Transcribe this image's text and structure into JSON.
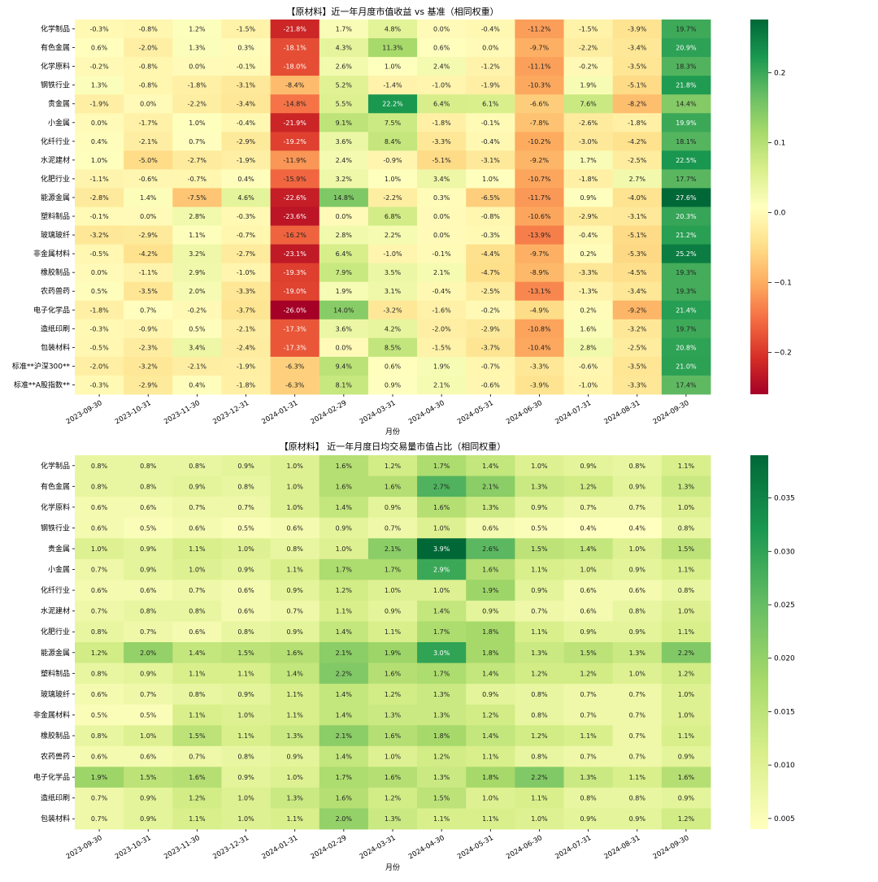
{
  "chart_data": [
    {
      "type": "heatmap",
      "title": "【原材料】近一年月度市值收益 vs 基准（相同权重）",
      "xlabel": "月份",
      "ylabel": "",
      "x": [
        "2023-09-30",
        "2023-10-31",
        "2023-11-30",
        "2023-12-31",
        "2024-01-31",
        "2024-02-29",
        "2024-03-31",
        "2024-04-30",
        "2024-05-31",
        "2024-06-30",
        "2024-07-31",
        "2024-08-31",
        "2024-09-30"
      ],
      "y": [
        "化学制品",
        "有色金属",
        "化学原料",
        "钢铁行业",
        "贵金属",
        "小金属",
        "化纤行业",
        "水泥建材",
        "化肥行业",
        "能源金属",
        "塑料制品",
        "玻璃玻纤",
        "非金属材料",
        "橡胶制品",
        "农药兽药",
        "电子化学品",
        "造纸印刷",
        "包装材料",
        "标准**沪深300**",
        "标准**A股指数**"
      ],
      "values": [
        [
          -0.3,
          -0.8,
          1.2,
          -1.5,
          -21.8,
          1.7,
          4.8,
          0.0,
          -0.4,
          -11.2,
          -1.5,
          -3.9,
          19.7
        ],
        [
          0.6,
          -2.0,
          1.3,
          0.3,
          -18.1,
          4.3,
          11.3,
          0.6,
          0.0,
          -9.7,
          -2.2,
          -3.4,
          20.9
        ],
        [
          -0.2,
          -0.8,
          0.0,
          -0.1,
          -18.0,
          2.6,
          1.0,
          2.4,
          -1.2,
          -11.1,
          -0.2,
          -3.5,
          18.3
        ],
        [
          1.3,
          -0.8,
          -1.8,
          -3.1,
          -8.4,
          5.2,
          -1.4,
          -1.0,
          -1.9,
          -10.3,
          1.9,
          -5.1,
          21.8
        ],
        [
          -1.9,
          0.0,
          -2.2,
          -3.4,
          -14.8,
          5.5,
          22.2,
          6.4,
          6.1,
          -6.6,
          7.6,
          -8.2,
          14.4
        ],
        [
          0.0,
          -1.7,
          1.0,
          -0.4,
          -21.9,
          9.1,
          7.5,
          -1.8,
          -0.1,
          -7.8,
          -2.6,
          -1.8,
          19.9
        ],
        [
          0.4,
          -2.1,
          0.7,
          -2.9,
          -19.2,
          3.6,
          8.4,
          -3.3,
          -0.4,
          -10.2,
          -3.0,
          -4.2,
          18.1
        ],
        [
          1.0,
          -5.0,
          -2.7,
          -1.9,
          -11.9,
          2.4,
          -0.9,
          -5.1,
          -3.1,
          -9.2,
          1.7,
          -2.5,
          22.5
        ],
        [
          -1.1,
          -0.6,
          -0.7,
          0.4,
          -15.9,
          3.2,
          1.0,
          3.4,
          1.0,
          -10.7,
          -1.8,
          2.7,
          17.7
        ],
        [
          -2.8,
          1.4,
          -7.5,
          4.6,
          -22.6,
          14.8,
          -2.2,
          0.3,
          -6.5,
          -11.7,
          0.9,
          -4.0,
          27.6
        ],
        [
          -0.1,
          0.0,
          2.8,
          -0.3,
          -23.6,
          0.0,
          6.8,
          0.0,
          -0.8,
          -10.6,
          -2.9,
          -3.1,
          20.3
        ],
        [
          -3.2,
          -2.9,
          1.1,
          -0.7,
          -16.2,
          2.8,
          2.2,
          0.0,
          -0.3,
          -13.9,
          -0.4,
          -5.1,
          21.2
        ],
        [
          -0.5,
          -4.2,
          3.2,
          -2.7,
          -23.1,
          6.4,
          -1.0,
          -0.1,
          -4.4,
          -9.7,
          0.2,
          -5.3,
          25.2
        ],
        [
          0.0,
          -1.1,
          2.9,
          -1.0,
          -19.3,
          7.9,
          3.5,
          2.1,
          -4.7,
          -8.9,
          -3.3,
          -4.5,
          19.3
        ],
        [
          0.5,
          -3.5,
          2.0,
          -3.3,
          -19.0,
          1.9,
          3.1,
          -0.4,
          -2.5,
          -13.1,
          -1.3,
          -3.4,
          19.3
        ],
        [
          -1.8,
          0.7,
          -0.2,
          -3.7,
          -26.0,
          14.0,
          -3.2,
          -1.6,
          -0.2,
          -4.9,
          0.2,
          -9.2,
          21.4
        ],
        [
          -0.3,
          -0.9,
          0.5,
          -2.1,
          -17.3,
          3.6,
          4.2,
          -2.0,
          -2.9,
          -10.8,
          1.6,
          -3.2,
          19.7
        ],
        [
          -0.5,
          -2.3,
          3.4,
          -2.4,
          -17.3,
          0.0,
          8.5,
          -1.5,
          -3.7,
          -10.4,
          2.8,
          -2.5,
          20.8
        ],
        [
          -2.0,
          -3.2,
          -2.1,
          -1.9,
          -6.3,
          9.4,
          0.6,
          1.9,
          -0.7,
          -3.3,
          -0.6,
          -3.5,
          21.0
        ],
        [
          -0.3,
          -2.9,
          0.4,
          -1.8,
          -6.3,
          8.1,
          0.9,
          2.1,
          -0.6,
          -3.9,
          -1.0,
          -3.3,
          17.4
        ]
      ],
      "value_format": "percent_1dp",
      "colormap": "RdYlGn",
      "colorbar": {
        "ticks": [
          0.2,
          0.1,
          0.0,
          -0.1,
          -0.2
        ],
        "range": [
          -0.26,
          0.276
        ]
      }
    },
    {
      "type": "heatmap",
      "title": "【原材料】 近一年月度日均交易量市值占比（相同权重）",
      "xlabel": "月份",
      "ylabel": "",
      "x": [
        "2023-09-30",
        "2023-10-31",
        "2023-11-30",
        "2023-12-31",
        "2024-01-31",
        "2024-02-29",
        "2024-03-31",
        "2024-04-30",
        "2024-05-31",
        "2024-06-30",
        "2024-07-31",
        "2024-08-31",
        "2024-09-30"
      ],
      "y": [
        "化学制品",
        "有色金属",
        "化学原料",
        "钢铁行业",
        "贵金属",
        "小金属",
        "化纤行业",
        "水泥建材",
        "化肥行业",
        "能源金属",
        "塑料制品",
        "玻璃玻纤",
        "非金属材料",
        "橡胶制品",
        "农药兽药",
        "电子化学品",
        "造纸印刷",
        "包装材料"
      ],
      "values": [
        [
          0.8,
          0.8,
          0.8,
          0.9,
          1.0,
          1.6,
          1.2,
          1.7,
          1.4,
          1.0,
          0.9,
          0.8,
          1.1
        ],
        [
          0.8,
          0.8,
          0.9,
          0.8,
          1.0,
          1.6,
          1.6,
          2.7,
          2.1,
          1.3,
          1.2,
          0.9,
          1.3
        ],
        [
          0.6,
          0.6,
          0.7,
          0.7,
          1.0,
          1.4,
          0.9,
          1.6,
          1.3,
          0.9,
          0.7,
          0.7,
          1.0
        ],
        [
          0.6,
          0.5,
          0.6,
          0.5,
          0.6,
          0.9,
          0.7,
          1.0,
          0.6,
          0.5,
          0.4,
          0.4,
          0.8
        ],
        [
          1.0,
          0.9,
          1.1,
          1.0,
          0.8,
          1.0,
          2.1,
          3.9,
          2.6,
          1.5,
          1.4,
          1.0,
          1.5
        ],
        [
          0.7,
          0.9,
          1.0,
          0.9,
          1.1,
          1.7,
          1.7,
          2.9,
          1.6,
          1.1,
          1.0,
          0.9,
          1.1
        ],
        [
          0.6,
          0.6,
          0.7,
          0.6,
          0.9,
          1.2,
          1.0,
          1.0,
          1.9,
          0.9,
          0.6,
          0.6,
          0.8
        ],
        [
          0.7,
          0.8,
          0.8,
          0.6,
          0.7,
          1.1,
          0.9,
          1.4,
          0.9,
          0.7,
          0.6,
          0.8,
          1.0
        ],
        [
          0.8,
          0.7,
          0.6,
          0.8,
          0.9,
          1.4,
          1.1,
          1.7,
          1.8,
          1.1,
          0.9,
          0.9,
          1.1
        ],
        [
          1.2,
          2.0,
          1.4,
          1.5,
          1.6,
          2.1,
          1.9,
          3.0,
          1.8,
          1.3,
          1.5,
          1.3,
          2.2
        ],
        [
          0.8,
          0.9,
          1.1,
          1.1,
          1.4,
          2.2,
          1.6,
          1.7,
          1.4,
          1.2,
          1.2,
          1.0,
          1.2
        ],
        [
          0.6,
          0.7,
          0.8,
          0.9,
          1.1,
          1.4,
          1.2,
          1.3,
          0.9,
          0.8,
          0.7,
          0.7,
          1.0
        ],
        [
          0.5,
          0.5,
          1.1,
          1.0,
          1.1,
          1.4,
          1.3,
          1.3,
          1.2,
          0.8,
          0.7,
          0.7,
          1.0
        ],
        [
          0.8,
          1.0,
          1.5,
          1.1,
          1.3,
          2.1,
          1.6,
          1.8,
          1.4,
          1.2,
          1.1,
          0.7,
          1.1
        ],
        [
          0.6,
          0.6,
          0.7,
          0.8,
          0.9,
          1.4,
          1.0,
          1.2,
          1.1,
          0.8,
          0.7,
          0.7,
          0.9
        ],
        [
          1.9,
          1.5,
          1.6,
          0.9,
          1.0,
          1.7,
          1.6,
          1.3,
          1.8,
          2.2,
          1.3,
          1.1,
          1.6
        ],
        [
          0.7,
          0.9,
          1.2,
          1.0,
          1.3,
          1.6,
          1.2,
          1.5,
          1.0,
          1.1,
          0.8,
          0.8,
          0.9
        ],
        [
          0.7,
          0.9,
          1.1,
          1.0,
          1.1,
          2.0,
          1.3,
          1.1,
          1.1,
          1.0,
          0.9,
          0.9,
          1.2
        ]
      ],
      "value_format": "percent_1dp",
      "colormap": "RdYlGn (upper half)",
      "colorbar": {
        "ticks": [
          0.035,
          0.03,
          0.025,
          0.02,
          0.015,
          0.01,
          0.005
        ],
        "range": [
          0.004,
          0.039
        ]
      }
    }
  ]
}
